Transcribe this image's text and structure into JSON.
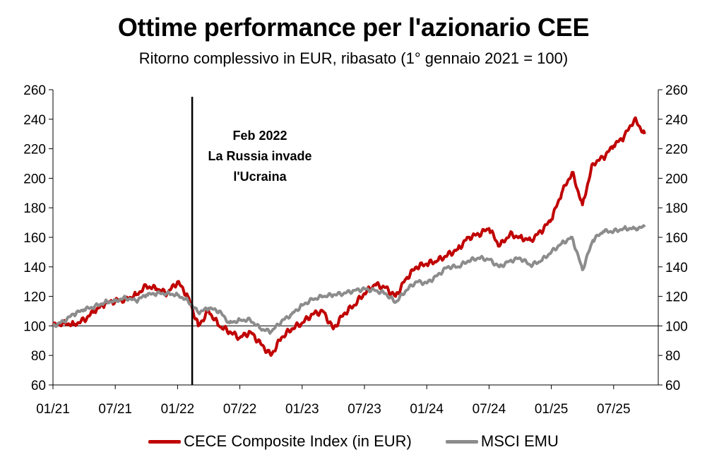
{
  "chart_data": {
    "type": "line",
    "title": "Ottime performance per l'azionario CEE",
    "subtitle": "Ritorno complessivo in EUR, ribasato (1° gennaio 2021 = 100)",
    "y_ticks": [
      60,
      80,
      100,
      120,
      140,
      160,
      180,
      200,
      220,
      240,
      260
    ],
    "ylim": [
      60,
      260
    ],
    "x_ticks": [
      "01/21",
      "07/21",
      "01/22",
      "07/22",
      "01/23",
      "07/23",
      "01/24",
      "07/24",
      "01/25",
      "07/25"
    ],
    "x_tick_dates": [
      "2021-01",
      "2021-07",
      "2022-01",
      "2022-07",
      "2023-01",
      "2023-07",
      "2024-01",
      "2024-07",
      "2025-01",
      "2025-07"
    ],
    "xlim": [
      "2021-01",
      "2025-10"
    ],
    "reference_line": 100,
    "event_line": {
      "date": "2022-02",
      "label": [
        "Feb 2022",
        "La Russia invade",
        "l'Ucraina"
      ]
    },
    "series": [
      {
        "name": "CECE Composite Index (in EUR)",
        "color": "#c00000",
        "points": [
          [
            "2021-01",
            100
          ],
          [
            "2021-02",
            102
          ],
          [
            "2021-03",
            101
          ],
          [
            "2021-04",
            104
          ],
          [
            "2021-05",
            110
          ],
          [
            "2021-06",
            115
          ],
          [
            "2021-07",
            117
          ],
          [
            "2021-08",
            118
          ],
          [
            "2021-09",
            121
          ],
          [
            "2021-10",
            127
          ],
          [
            "2021-11",
            125
          ],
          [
            "2021-12",
            122
          ],
          [
            "2022-01",
            130
          ],
          [
            "2022-02",
            120
          ],
          [
            "2022-03",
            100
          ],
          [
            "2022-04",
            110
          ],
          [
            "2022-05",
            100
          ],
          [
            "2022-06",
            96
          ],
          [
            "2022-07",
            92
          ],
          [
            "2022-08",
            96
          ],
          [
            "2022-09",
            88
          ],
          [
            "2022-10",
            80
          ],
          [
            "2022-11",
            92
          ],
          [
            "2022-12",
            98
          ],
          [
            "2023-01",
            102
          ],
          [
            "2023-02",
            108
          ],
          [
            "2023-03",
            110
          ],
          [
            "2023-04",
            98
          ],
          [
            "2023-05",
            108
          ],
          [
            "2023-06",
            114
          ],
          [
            "2023-07",
            122
          ],
          [
            "2023-08",
            128
          ],
          [
            "2023-09",
            126
          ],
          [
            "2023-10",
            120
          ],
          [
            "2023-11",
            132
          ],
          [
            "2023-12",
            140
          ],
          [
            "2024-01",
            142
          ],
          [
            "2024-02",
            144
          ],
          [
            "2024-03",
            148
          ],
          [
            "2024-04",
            152
          ],
          [
            "2024-05",
            160
          ],
          [
            "2024-06",
            162
          ],
          [
            "2024-07",
            166
          ],
          [
            "2024-08",
            154
          ],
          [
            "2024-09",
            162
          ],
          [
            "2024-10",
            160
          ],
          [
            "2024-11",
            158
          ],
          [
            "2024-12",
            164
          ],
          [
            "2025-01",
            172
          ],
          [
            "2025-02",
            190
          ],
          [
            "2025-03",
            204
          ],
          [
            "2025-04",
            182
          ],
          [
            "2025-05",
            210
          ],
          [
            "2025-06",
            214
          ],
          [
            "2025-07",
            222
          ],
          [
            "2025-08",
            228
          ],
          [
            "2025-09",
            240
          ],
          [
            "2025-10",
            230
          ]
        ]
      },
      {
        "name": "MSCI EMU",
        "color": "#8c8c8c",
        "points": [
          [
            "2021-01",
            100
          ],
          [
            "2021-02",
            103
          ],
          [
            "2021-03",
            108
          ],
          [
            "2021-04",
            111
          ],
          [
            "2021-05",
            113
          ],
          [
            "2021-06",
            116
          ],
          [
            "2021-07",
            117
          ],
          [
            "2021-08",
            119
          ],
          [
            "2021-09",
            117
          ],
          [
            "2021-10",
            121
          ],
          [
            "2021-11",
            122
          ],
          [
            "2021-12",
            122
          ],
          [
            "2022-01",
            121
          ],
          [
            "2022-02",
            117
          ],
          [
            "2022-03",
            109
          ],
          [
            "2022-04",
            112
          ],
          [
            "2022-05",
            110
          ],
          [
            "2022-06",
            102
          ],
          [
            "2022-07",
            104
          ],
          [
            "2022-08",
            104
          ],
          [
            "2022-09",
            98
          ],
          [
            "2022-10",
            96
          ],
          [
            "2022-11",
            103
          ],
          [
            "2022-12",
            108
          ],
          [
            "2023-01",
            114
          ],
          [
            "2023-02",
            118
          ],
          [
            "2023-03",
            120
          ],
          [
            "2023-04",
            121
          ],
          [
            "2023-05",
            122
          ],
          [
            "2023-06",
            124
          ],
          [
            "2023-07",
            125
          ],
          [
            "2023-08",
            124
          ],
          [
            "2023-09",
            122
          ],
          [
            "2023-10",
            116
          ],
          [
            "2023-11",
            124
          ],
          [
            "2023-12",
            130
          ],
          [
            "2024-01",
            129
          ],
          [
            "2024-02",
            134
          ],
          [
            "2024-03",
            140
          ],
          [
            "2024-04",
            140
          ],
          [
            "2024-05",
            144
          ],
          [
            "2024-06",
            146
          ],
          [
            "2024-07",
            145
          ],
          [
            "2024-08",
            140
          ],
          [
            "2024-09",
            144
          ],
          [
            "2024-10",
            146
          ],
          [
            "2024-11",
            141
          ],
          [
            "2024-12",
            144
          ],
          [
            "2025-01",
            150
          ],
          [
            "2025-02",
            156
          ],
          [
            "2025-03",
            160
          ],
          [
            "2025-04",
            138
          ],
          [
            "2025-05",
            158
          ],
          [
            "2025-06",
            164
          ],
          [
            "2025-07",
            164
          ],
          [
            "2025-08",
            166
          ],
          [
            "2025-09",
            166
          ],
          [
            "2025-10",
            167
          ]
        ]
      }
    ],
    "legend_position": "bottom"
  }
}
